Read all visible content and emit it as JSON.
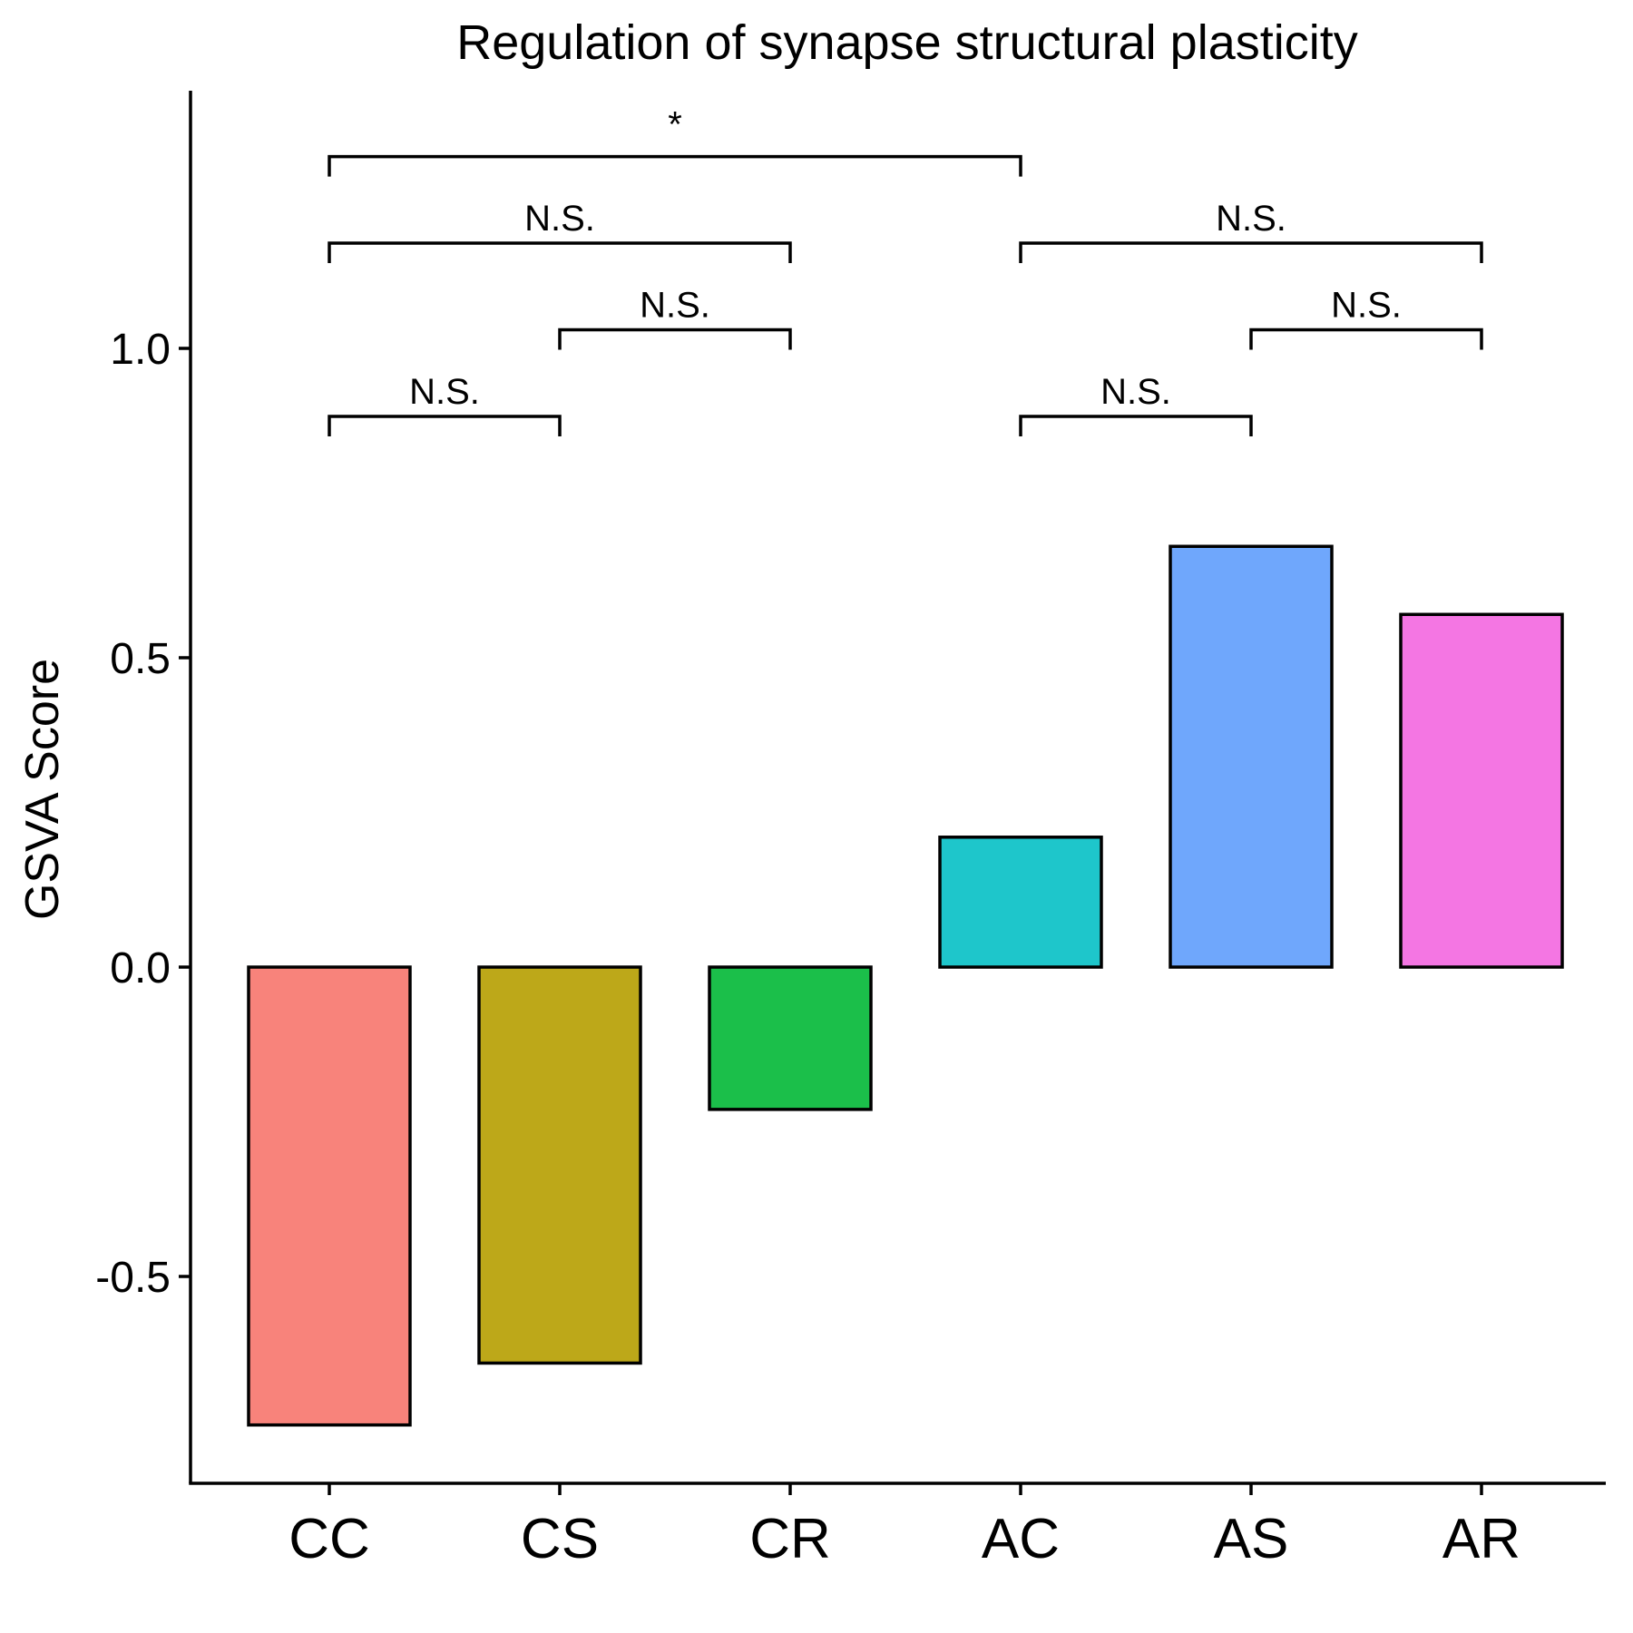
{
  "chart_data": {
    "type": "bar",
    "title": "Regulation of synapse structural plasticity",
    "xlabel": "",
    "ylabel": "GSVA Score",
    "categories": [
      "CC",
      "CS",
      "CR",
      "AC",
      "AS",
      "AR"
    ],
    "values": [
      -0.74,
      -0.64,
      -0.23,
      0.21,
      0.68,
      0.57
    ],
    "colors": [
      "#F8837B",
      "#BDA819",
      "#1BBF4A",
      "#1EC6CB",
      "#6FA7FC",
      "#F476E3"
    ],
    "yticks": [
      -0.5,
      0.0,
      0.5,
      1.0
    ],
    "ytick_labels": [
      "-0.5",
      "0.0",
      "0.5",
      "1.0"
    ],
    "ylim": [
      -0.84,
      1.42
    ],
    "grid": false,
    "legend": "none",
    "annotations": [
      {
        "from": "CC",
        "to": "CS",
        "y": 0.89,
        "label": "N.S."
      },
      {
        "from": "CS",
        "to": "CR",
        "y": 1.03,
        "label": "N.S."
      },
      {
        "from": "CC",
        "to": "CR",
        "y": 1.17,
        "label": "N.S."
      },
      {
        "from": "CC",
        "to": "AC",
        "y": 1.31,
        "label": "*"
      },
      {
        "from": "AC",
        "to": "AS",
        "y": 0.89,
        "label": "N.S."
      },
      {
        "from": "AS",
        "to": "AR",
        "y": 1.03,
        "label": "N.S."
      },
      {
        "from": "AC",
        "to": "AR",
        "y": 1.17,
        "label": "N.S."
      }
    ]
  }
}
